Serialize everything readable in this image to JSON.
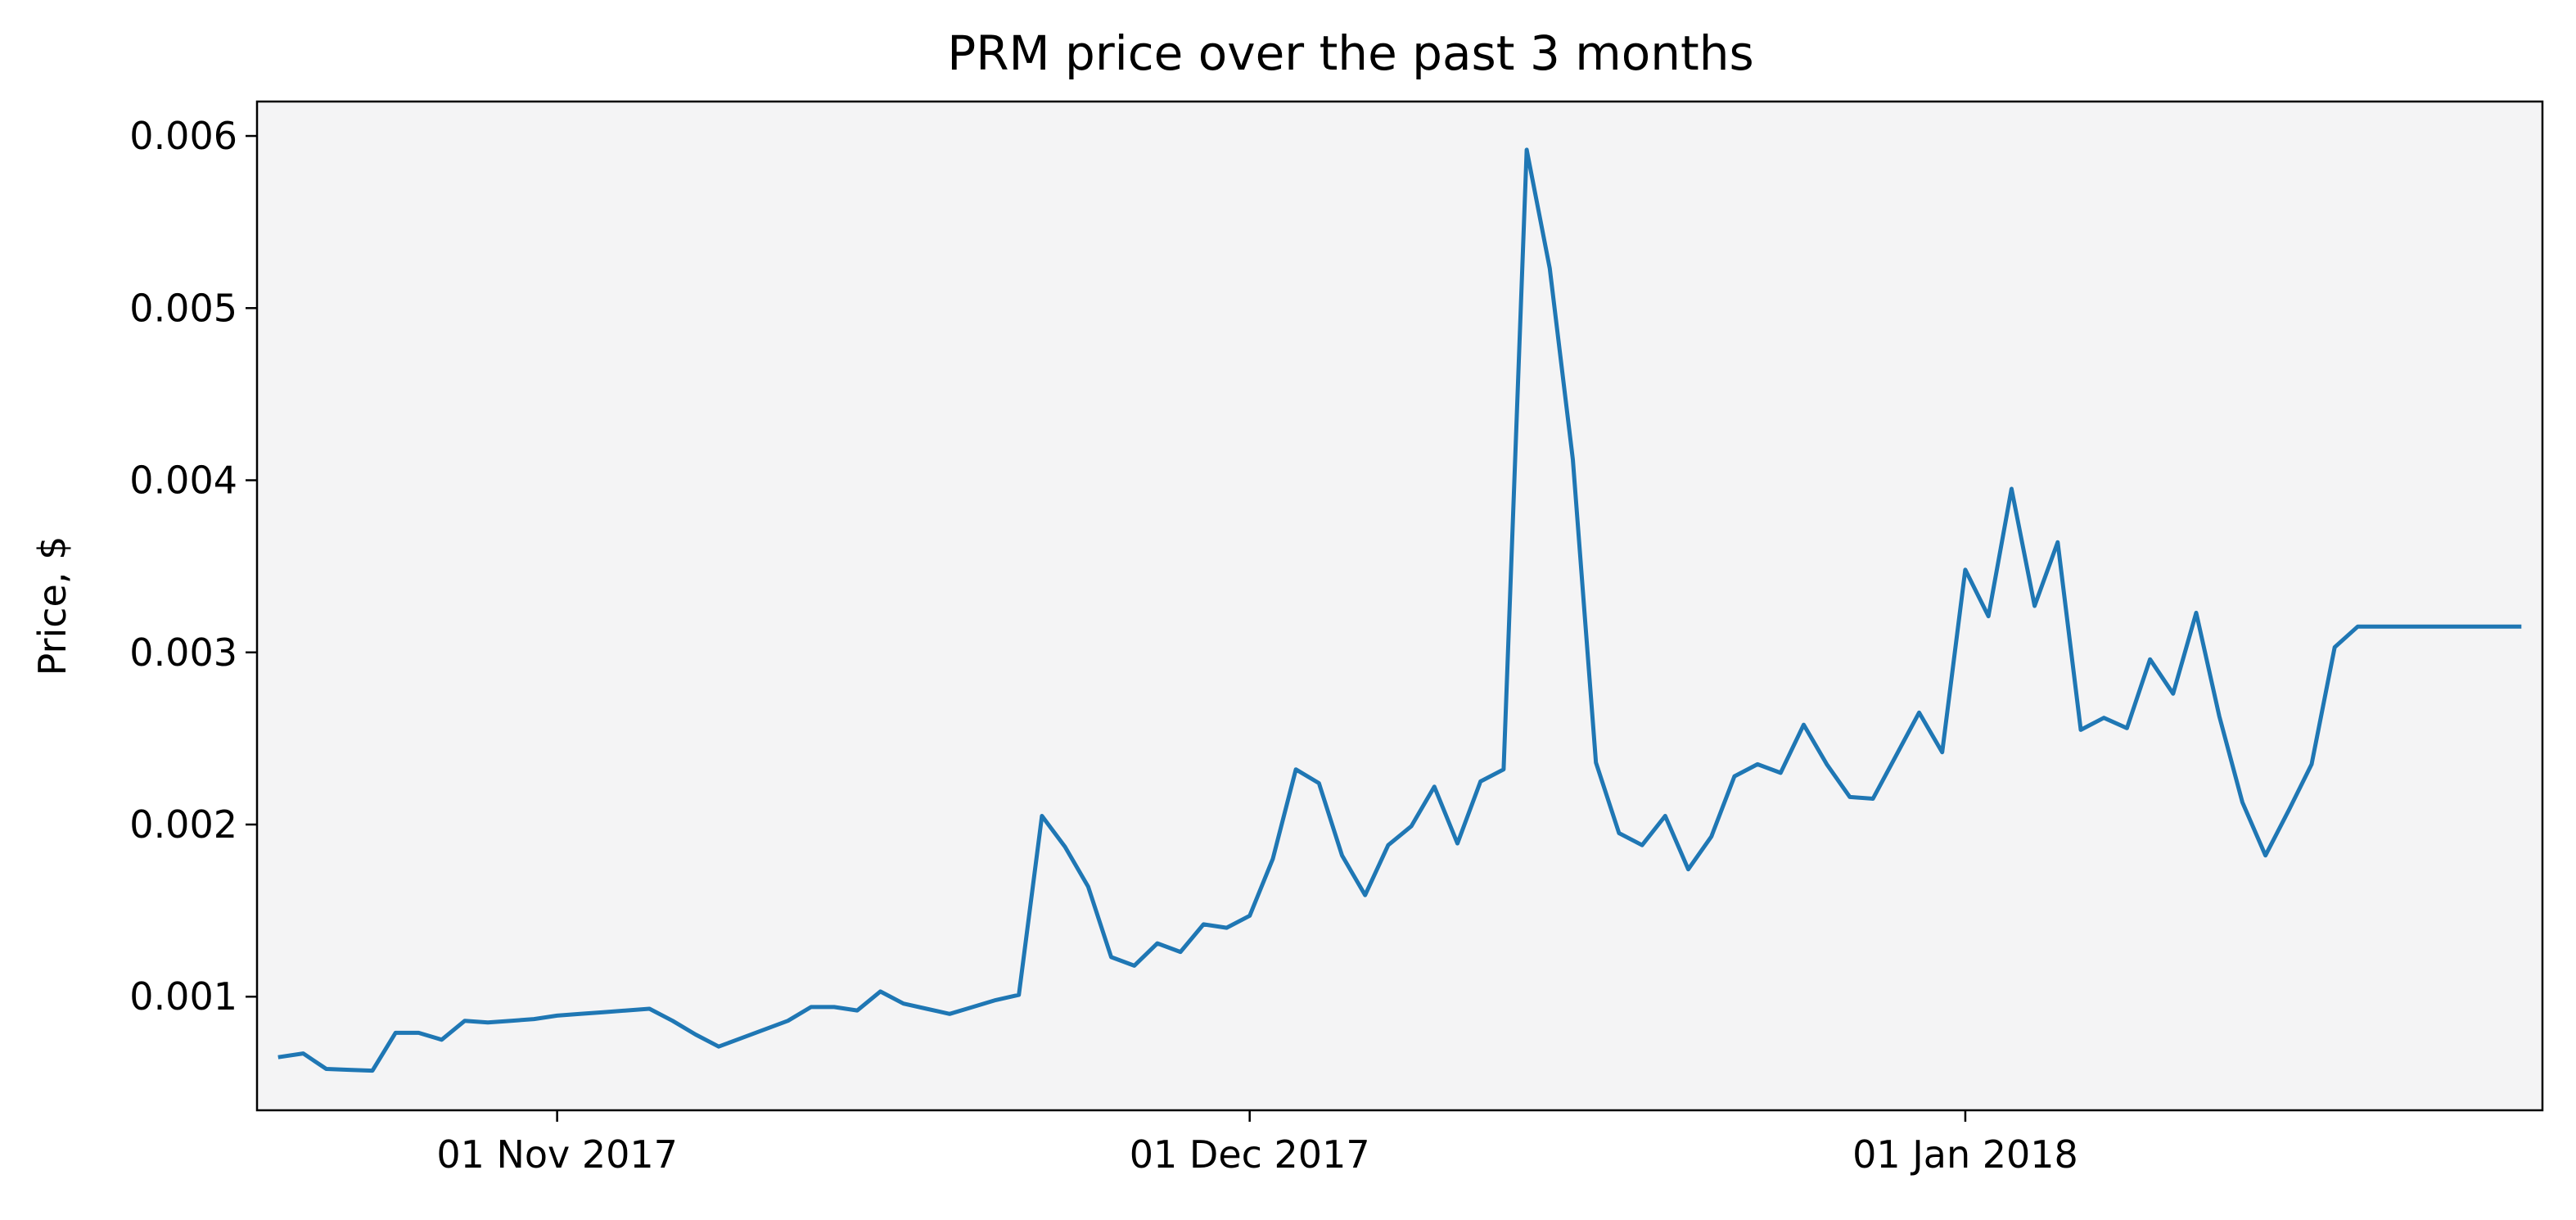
{
  "chart_data": {
    "type": "line",
    "title": "PRM price over the past 3 months",
    "xlabel": "",
    "ylabel": "Price, $",
    "xlim": [
      "2017-10-19",
      "2018-01-26"
    ],
    "ylim": [
      0.00034,
      0.0062
    ],
    "yticks": [
      0.001,
      0.002,
      0.003,
      0.004,
      0.005,
      0.006
    ],
    "ytick_labels": [
      "0.001",
      "0.002",
      "0.003",
      "0.004",
      "0.005",
      "0.006"
    ],
    "xticks": [
      "2017-11-01",
      "2017-12-01",
      "2018-01-01"
    ],
    "xtick_labels": [
      "01 Nov 2017",
      "01 Dec 2017",
      "01 Jan 2018"
    ],
    "grid": false,
    "legend": "none",
    "series": [
      {
        "color": "#1f77b4",
        "x": [
          "2017-10-20",
          "2017-10-21",
          "2017-10-22",
          "2017-10-23",
          "2017-10-24",
          "2017-10-25",
          "2017-10-26",
          "2017-10-27",
          "2017-10-28",
          "2017-10-29",
          "2017-10-30",
          "2017-10-31",
          "2017-11-01",
          "2017-11-02",
          "2017-11-03",
          "2017-11-04",
          "2017-11-05",
          "2017-11-06",
          "2017-11-07",
          "2017-11-08",
          "2017-11-09",
          "2017-11-10",
          "2017-11-11",
          "2017-11-12",
          "2017-11-13",
          "2017-11-14",
          "2017-11-15",
          "2017-11-16",
          "2017-11-17",
          "2017-11-18",
          "2017-11-19",
          "2017-11-20",
          "2017-11-21",
          "2017-11-22",
          "2017-11-23",
          "2017-11-24",
          "2017-11-25",
          "2017-11-26",
          "2017-11-27",
          "2017-11-28",
          "2017-11-29",
          "2017-11-30",
          "2017-12-01",
          "2017-12-02",
          "2017-12-03",
          "2017-12-04",
          "2017-12-05",
          "2017-12-06",
          "2017-12-07",
          "2017-12-08",
          "2017-12-09",
          "2017-12-10",
          "2017-12-11",
          "2017-12-12",
          "2017-12-13",
          "2017-12-14",
          "2017-12-15",
          "2017-12-16",
          "2017-12-17",
          "2017-12-18",
          "2017-12-19",
          "2017-12-20",
          "2017-12-21",
          "2017-12-22",
          "2017-12-23",
          "2017-12-24",
          "2017-12-25",
          "2017-12-26",
          "2017-12-27",
          "2017-12-28",
          "2017-12-29",
          "2017-12-30",
          "2017-12-31",
          "2018-01-01",
          "2018-01-02",
          "2018-01-03",
          "2018-01-04",
          "2018-01-05",
          "2018-01-06",
          "2018-01-07",
          "2018-01-08",
          "2018-01-09",
          "2018-01-10",
          "2018-01-11",
          "2018-01-12",
          "2018-01-13",
          "2018-01-14",
          "2018-01-15",
          "2018-01-16",
          "2018-01-17",
          "2018-01-18",
          "2018-01-19",
          "2018-01-20",
          "2018-01-21",
          "2018-01-22",
          "2018-01-23",
          "2018-01-24",
          "2018-01-25"
        ],
        "y": [
          0.00065,
          0.00067,
          0.00058,
          0.000575,
          0.00057,
          0.00079,
          0.00079,
          0.00075,
          0.00086,
          0.00085,
          0.00086,
          0.00087,
          0.00089,
          0.0009,
          0.00091,
          0.00092,
          0.00093,
          0.00086,
          0.00078,
          0.00071,
          0.00076,
          0.00081,
          0.00086,
          0.00094,
          0.00094,
          0.00092,
          0.00103,
          0.00096,
          0.00093,
          0.0009,
          0.00094,
          0.00098,
          0.00101,
          0.00205,
          0.00187,
          0.00164,
          0.00123,
          0.00118,
          0.00131,
          0.00126,
          0.00142,
          0.0014,
          0.00147,
          0.0018,
          0.00232,
          0.00224,
          0.00182,
          0.00159,
          0.00188,
          0.00199,
          0.00222,
          0.00189,
          0.00225,
          0.00232,
          0.00592,
          0.00523,
          0.00412,
          0.00236,
          0.00195,
          0.00188,
          0.00205,
          0.00174,
          0.00193,
          0.00228,
          0.00235,
          0.0023,
          0.00258,
          0.00235,
          0.00216,
          0.00215,
          0.0024,
          0.00265,
          0.00242,
          0.00348,
          0.00321,
          0.00395,
          0.00327,
          0.00364,
          0.00255,
          0.00262,
          0.00256,
          0.00296,
          0.00276,
          0.00323,
          0.00263,
          0.00213,
          0.00182,
          0.00208,
          0.00235,
          0.00303,
          0.00315,
          0.00315,
          0.00315,
          0.00315,
          0.00315,
          0.00315,
          0.00315,
          0.00315
        ]
      }
    ]
  }
}
